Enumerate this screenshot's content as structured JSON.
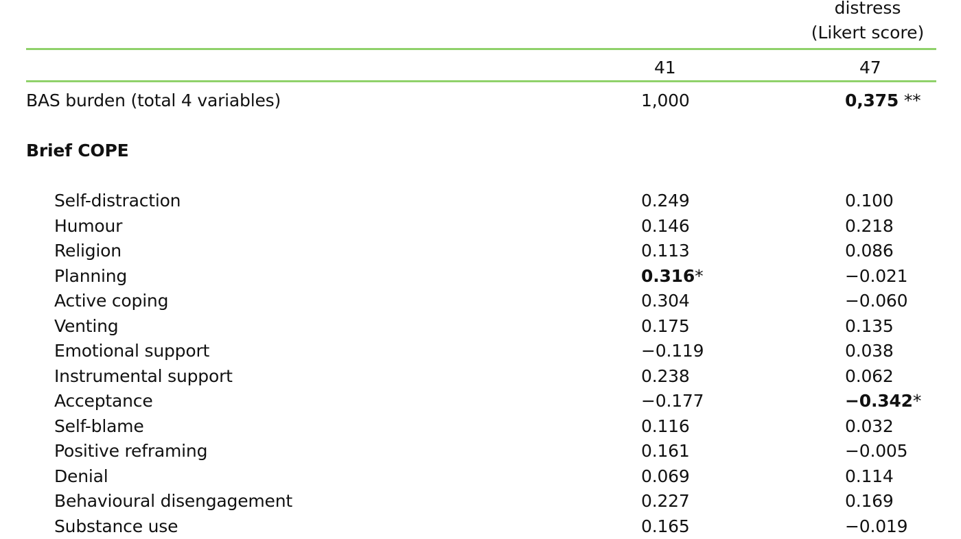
{
  "accent_color": "#8fd16a",
  "header": {
    "col_c_line1": "distress",
    "col_c_line2": "(Likert score)"
  },
  "n_row": {
    "col_b": "41",
    "col_c": "47"
  },
  "bas_row": {
    "label": "BAS burden (total 4 variables)",
    "col_b": "1,000",
    "col_c_value": "0,375",
    "col_c_mark": " **"
  },
  "section": {
    "title": "Brief COPE"
  },
  "rows": [
    {
      "label": "Self-distraction",
      "b": "0.249",
      "c": "0.100"
    },
    {
      "label": "Humour",
      "b": "0.146",
      "c": "0.218"
    },
    {
      "label": "Religion",
      "b": "0.113",
      "c": "0.086"
    },
    {
      "label": "Planning",
      "b": "0.316",
      "b_mark": "*",
      "b_bold": true,
      "c": "−0.021"
    },
    {
      "label": "Active coping",
      "b": "0.304",
      "c": "−0.060"
    },
    {
      "label": "Venting",
      "b": "0.175",
      "c": "0.135"
    },
    {
      "label": "Emotional support",
      "b": "−0.119",
      "c": "0.038"
    },
    {
      "label": "Instrumental support",
      "b": "0.238",
      "c": "0.062"
    },
    {
      "label": "Acceptance",
      "b": "−0.177",
      "c": "−0.342",
      "c_mark": "*",
      "c_bold": true
    },
    {
      "label": "Self-blame",
      "b": "0.116",
      "c": "0.032"
    },
    {
      "label": "Positive reframing",
      "b": "0.161",
      "c": " −0.005"
    },
    {
      "label": "Denial",
      "b": "0.069",
      "c": "0.114"
    },
    {
      "label": "Behavioural disengagement",
      "b": "0.227",
      "c": "0.169"
    },
    {
      "label": "Substance use",
      "b": "0.165",
      "c": "−0.019"
    }
  ]
}
